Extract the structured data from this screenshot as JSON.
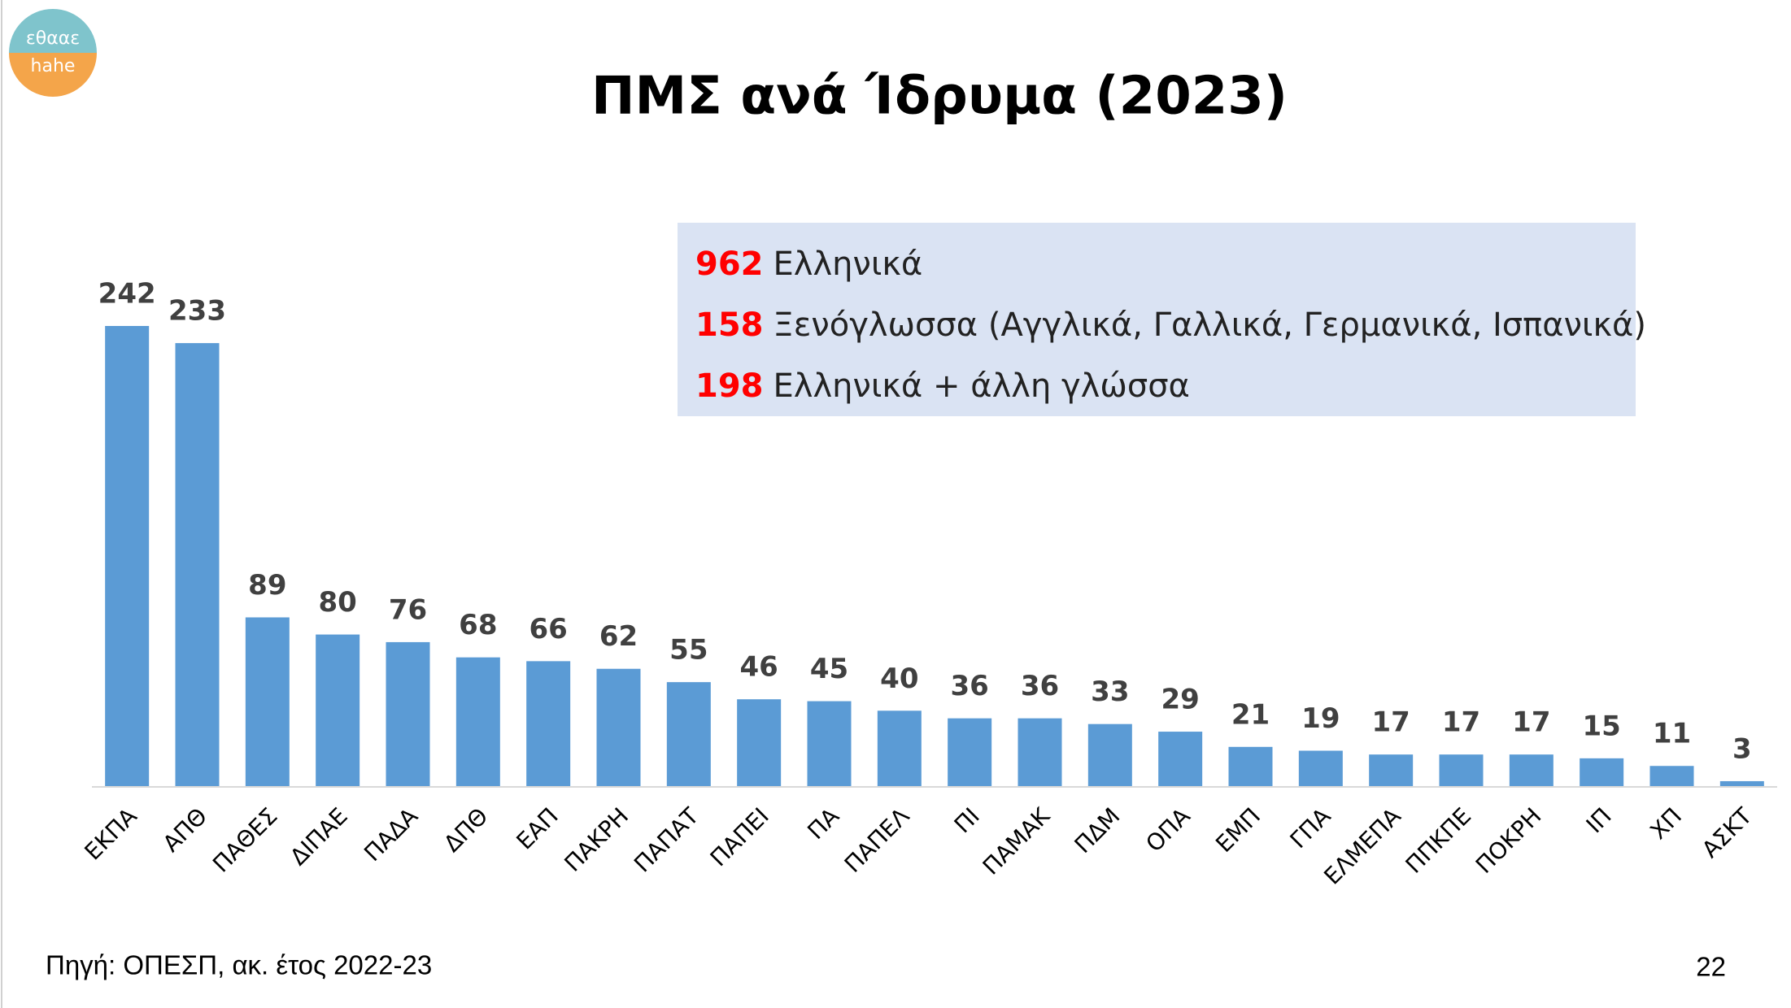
{
  "logo": {
    "top": "εθααε",
    "bottom": "hahe"
  },
  "summary": [
    {
      "value": 962,
      "label": "Ελληνικά"
    },
    {
      "value": 158,
      "label": "Ξενόγλωσσα (Αγγλικά, Γαλλικά, Γερμανικά, Ισπανικά)"
    },
    {
      "value": 198,
      "label": "Ελληνικά + άλλη γλώσσα"
    }
  ],
  "source": "Πηγή: ΟΠΕΣΠ, ακ. έτος 2022-23",
  "page_number": "22",
  "chart_data": {
    "type": "bar",
    "title": "ΠΜΣ ανά Ίδρυμα (2023)",
    "categories": [
      "ΕΚΠΑ",
      "ΑΠΘ",
      "ΠΑΘΕΣ",
      "ΔΙΠΑΕ",
      "ΠΑΔΑ",
      "ΔΠΘ",
      "ΕΑΠ",
      "ΠΑΚΡΗ",
      "ΠΑΠΑΤ",
      "ΠΑΠΕΙ",
      "ΠΑ",
      "ΠΑΠΕΛ",
      "ΠΙ",
      "ΠΑΜΑΚ",
      "ΠΔΜ",
      "ΟΠΑ",
      "ΕΜΠ",
      "ΓΠΑ",
      "ΕΛΜΕΠΑ",
      "ΠΠΚΠΕ",
      "ΠΟΚΡΗ",
      "ΙΠ",
      "ΧΠ",
      "ΑΣΚΤ"
    ],
    "values": [
      242,
      233,
      89,
      80,
      76,
      68,
      66,
      62,
      55,
      46,
      45,
      40,
      36,
      36,
      33,
      29,
      21,
      19,
      17,
      17,
      17,
      15,
      11,
      3
    ],
    "color": "#5b9bd5"
  }
}
